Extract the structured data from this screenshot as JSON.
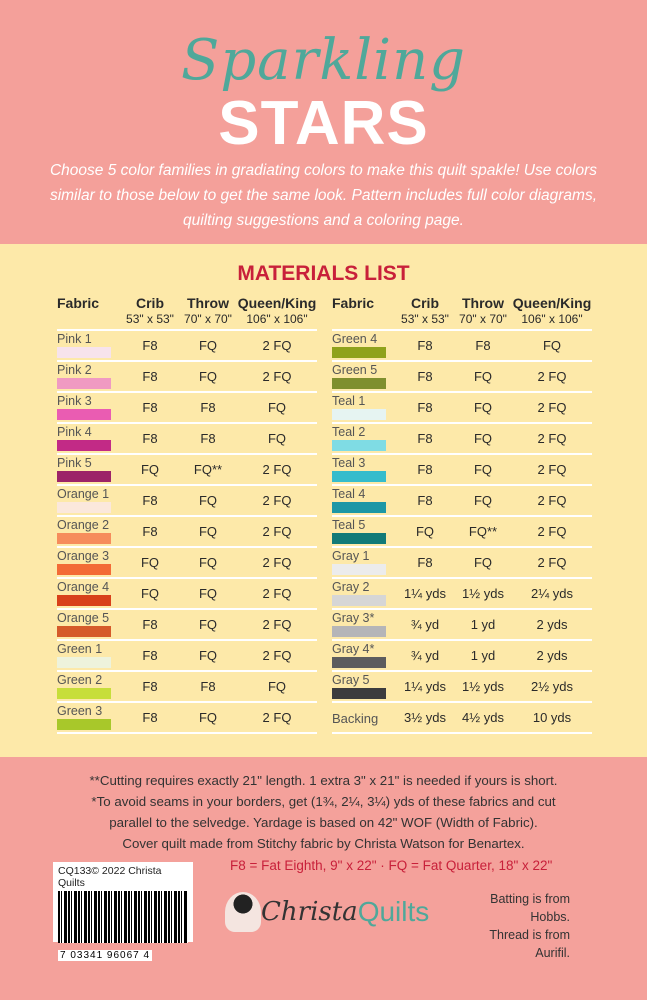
{
  "title": {
    "script": "Sparkling",
    "bold": "STARS"
  },
  "intro": "Choose 5 color families in gradiating colors to make this quilt spakle! Use colors similar to those below to get the same look. Pattern includes full color diagrams, quilting suggestions and a coloring page.",
  "materials_title": "MATERIALS LIST",
  "headers": {
    "fabric": "Fabric",
    "crib": "Crib",
    "crib_size": "53\" x 53\"",
    "throw": "Throw",
    "throw_size": "70\" x 70\"",
    "queen": "Queen/King",
    "queen_size": "106\" x 106\""
  },
  "left_rows": [
    {
      "name": "Pink 1",
      "crib": "F8",
      "throw": "FQ",
      "queen": "2 FQ",
      "color": "#f7e3ec"
    },
    {
      "name": "Pink 2",
      "crib": "F8",
      "throw": "FQ",
      "queen": "2 FQ",
      "color": "#f09ac2"
    },
    {
      "name": "Pink 3",
      "crib": "F8",
      "throw": "F8",
      "queen": "FQ",
      "color": "#ea5cb2"
    },
    {
      "name": "Pink 4",
      "crib": "F8",
      "throw": "F8",
      "queen": "FQ",
      "color": "#c22a86"
    },
    {
      "name": "Pink 5",
      "crib": "FQ",
      "throw": "FQ**",
      "queen": "2 FQ",
      "color": "#9c2368"
    },
    {
      "name": "Orange 1",
      "crib": "F8",
      "throw": "FQ",
      "queen": "2 FQ",
      "color": "#fbe8dc"
    },
    {
      "name": "Orange 2",
      "crib": "F8",
      "throw": "FQ",
      "queen": "2 FQ",
      "color": "#f68c5c"
    },
    {
      "name": "Orange 3",
      "crib": "FQ",
      "throw": "FQ",
      "queen": "2 FQ",
      "color": "#f36b36"
    },
    {
      "name": "Orange 4",
      "crib": "FQ",
      "throw": "FQ",
      "queen": "2 FQ",
      "color": "#d8401a"
    },
    {
      "name": "Orange 5",
      "crib": "F8",
      "throw": "FQ",
      "queen": "2 FQ",
      "color": "#d55a2a"
    },
    {
      "name": "Green 1",
      "crib": "F8",
      "throw": "FQ",
      "queen": "2 FQ",
      "color": "#eef3dc"
    },
    {
      "name": "Green 2",
      "crib": "F8",
      "throw": "F8",
      "queen": "FQ",
      "color": "#c7de3a"
    },
    {
      "name": "Green 3",
      "crib": "F8",
      "throw": "FQ",
      "queen": "2 FQ",
      "color": "#a8c82a"
    }
  ],
  "right_rows": [
    {
      "name": "Green 4",
      "crib": "F8",
      "throw": "F8",
      "queen": "FQ",
      "color": "#8fa21c"
    },
    {
      "name": "Green 5",
      "crib": "F8",
      "throw": "FQ",
      "queen": "2 FQ",
      "color": "#7f8f2e"
    },
    {
      "name": "Teal 1",
      "crib": "F8",
      "throw": "FQ",
      "queen": "2 FQ",
      "color": "#e6f4f2"
    },
    {
      "name": "Teal 2",
      "crib": "F8",
      "throw": "FQ",
      "queen": "2 FQ",
      "color": "#7fdce4"
    },
    {
      "name": "Teal 3",
      "crib": "F8",
      "throw": "FQ",
      "queen": "2 FQ",
      "color": "#35bccc"
    },
    {
      "name": "Teal 4",
      "crib": "F8",
      "throw": "FQ",
      "queen": "2 FQ",
      "color": "#1d97a6"
    },
    {
      "name": "Teal 5",
      "crib": "FQ",
      "throw": "FQ**",
      "queen": "2 FQ",
      "color": "#127a78"
    },
    {
      "name": "Gray 1",
      "crib": "F8",
      "throw": "FQ",
      "queen": "2 FQ",
      "color": "#ececec"
    },
    {
      "name": "Gray 2",
      "crib": "1¼ yds",
      "throw": "1½ yds",
      "queen": "2¼ yds",
      "color": "#d6d6d6"
    },
    {
      "name": "Gray 3*",
      "crib": "¾ yd",
      "throw": "1 yd",
      "queen": "2 yds",
      "color": "#b5b5b8"
    },
    {
      "name": "Gray 4*",
      "crib": "¾ yd",
      "throw": "1 yd",
      "queen": "2 yds",
      "color": "#5c5c5e"
    },
    {
      "name": "Gray 5",
      "crib": "1¼ yds",
      "throw": "1½ yds",
      "queen": "2½ yds",
      "color": "#3c3c3e"
    },
    {
      "name": "Backing",
      "crib": "3½ yds",
      "throw": "4½ yds",
      "queen": "10 yds",
      "color": ""
    }
  ],
  "notes": [
    "**Cutting requires exactly 21\" length. 1 extra 3\" x 21\" is needed if yours is short.",
    "*To avoid seams in your borders, get (1¾, 2¼, 3¼) yds of these fabrics and cut",
    "parallel to the selvedge. Yardage is based on 42\" WOF (Width of Fabric).",
    "Cover quilt made from Stitchy fabric by Christa Watson for Benartex."
  ],
  "barcode": {
    "label": "CQ133© 2022 Christa Quilts",
    "number": "7  03341  96067  4"
  },
  "definitions": "F8 = Fat Eighth, 9\" x 22\" · FQ = Fat Quarter, 18\" x 22\"",
  "logo": {
    "part1": "Christa",
    "part2": "Quilts"
  },
  "credits": [
    "Batting is from Hobbs.",
    "Thread is from Aurifil."
  ]
}
